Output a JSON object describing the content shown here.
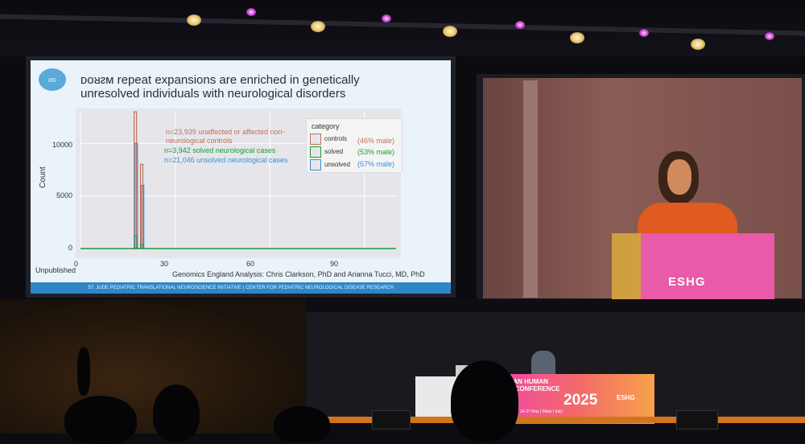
{
  "slide": {
    "title_line1": "ᴅᴏᴚᴤᴍ repeat expansions are enriched in genetically",
    "title_line2": "unresolved individuals with neurological disorders",
    "logo": "ᴎᴅ",
    "ylabel": "Count",
    "yticks": [
      "10000",
      "5000",
      "0"
    ],
    "xticks": [
      "0",
      "30",
      "60",
      "90"
    ],
    "annotation_controls": "n=23,939 unaffected or affected non-",
    "annotation_controls2": "neurological controls",
    "annotation_solved": "n=3,942 solved neurological cases",
    "annotation_unsolved": "n=21,046 unsolved neurological cases",
    "legend_title": "category",
    "legend": [
      {
        "label": "controls",
        "pct": "(46% male)",
        "color": "#c0705a"
      },
      {
        "label": "solved",
        "pct": "(53% male)",
        "color": "#1a9a3a"
      },
      {
        "label": "unsolved",
        "pct": "(57% male)",
        "color": "#3a8fd6"
      }
    ],
    "unpublished": "Unpublished",
    "credit": "Genomics England Analysis: Chris Clarkson, PhD and Arianna Tucci, MD, PhD",
    "footer": "ST. JUDE PEDIATRIC TRANSLATIONAL NEUROSCIENCE INITIATIVE | CENTER FOR PEDIATRIC NEUROLOGICAL DISEASE RESEARCH"
  },
  "stage": {
    "podium_logo": "ESHG",
    "banner_line1": "EAN HUMAN",
    "banner_line2": "S CONFERENCE",
    "banner_year": "2025",
    "banner_brand": "ESHG",
    "banner_place": "24-27 May | Milan | Italy"
  },
  "chart_data": {
    "type": "bar",
    "ylabel": "Count",
    "xlim": [
      0,
      100
    ],
    "ylim": [
      0,
      13000
    ],
    "series": [
      {
        "name": "controls",
        "x": [
          17,
          19
        ],
        "values": [
          13000,
          8000
        ]
      },
      {
        "name": "solved",
        "x": [
          17,
          19
        ],
        "values": [
          1200,
          400
        ]
      },
      {
        "name": "unsolved",
        "x": [
          17,
          19
        ],
        "values": [
          10000,
          6000
        ]
      }
    ]
  },
  "colors": {
    "controls": "#c0705a",
    "solved": "#1a9a3a",
    "unsolved": "#3a8fd6",
    "slide_bg": "#eaf2fa",
    "banner": "#f04aa0"
  }
}
